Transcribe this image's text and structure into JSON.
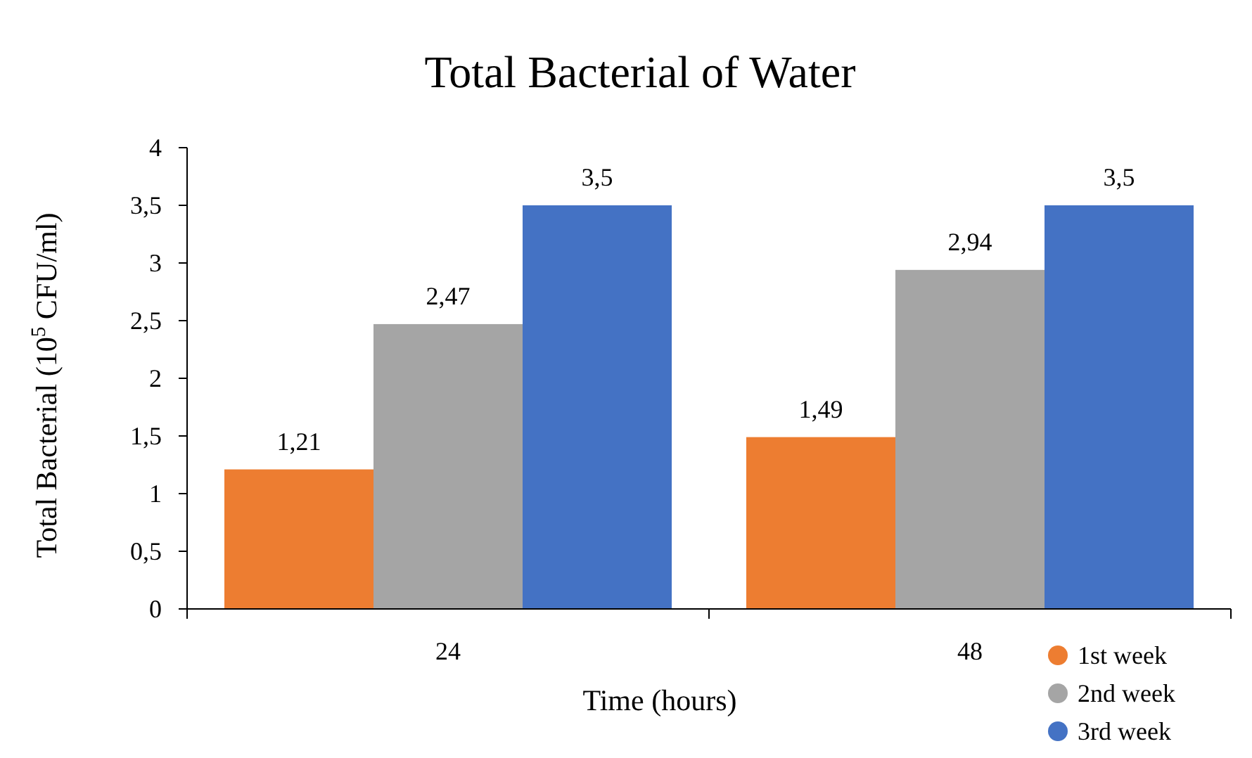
{
  "chart_data": {
    "type": "bar",
    "title": "Total Bacterial of Water",
    "xlabel": "Time (hours)",
    "ylabel": "Total Bacterial (10$^{5}$ CFU/ml)",
    "categories": [
      "24",
      "48"
    ],
    "series": [
      {
        "name": "1st week",
        "color": "#ed7d31",
        "values": [
          1.21,
          1.49
        ],
        "value_labels": [
          "1,21",
          "1,49"
        ]
      },
      {
        "name": "2nd week",
        "color": "#a5a5a5",
        "values": [
          2.47,
          2.94
        ],
        "value_labels": [
          "2,47",
          "2,94"
        ]
      },
      {
        "name": "3rd week",
        "color": "#4472c4",
        "values": [
          3.5,
          3.5
        ],
        "value_labels": [
          "3,5",
          "3,5"
        ]
      }
    ],
    "ylim": [
      0,
      4
    ],
    "yticks": [
      0,
      {
        "value": 0.5,
        "label": "0,5"
      },
      1,
      {
        "value": 1.5,
        "label": "1,5"
      },
      2,
      {
        "value": 2.5,
        "label": "2,5"
      },
      3,
      {
        "value": 3.5,
        "label": "3,5"
      },
      4
    ],
    "grid": false,
    "legend": "bottom right"
  }
}
